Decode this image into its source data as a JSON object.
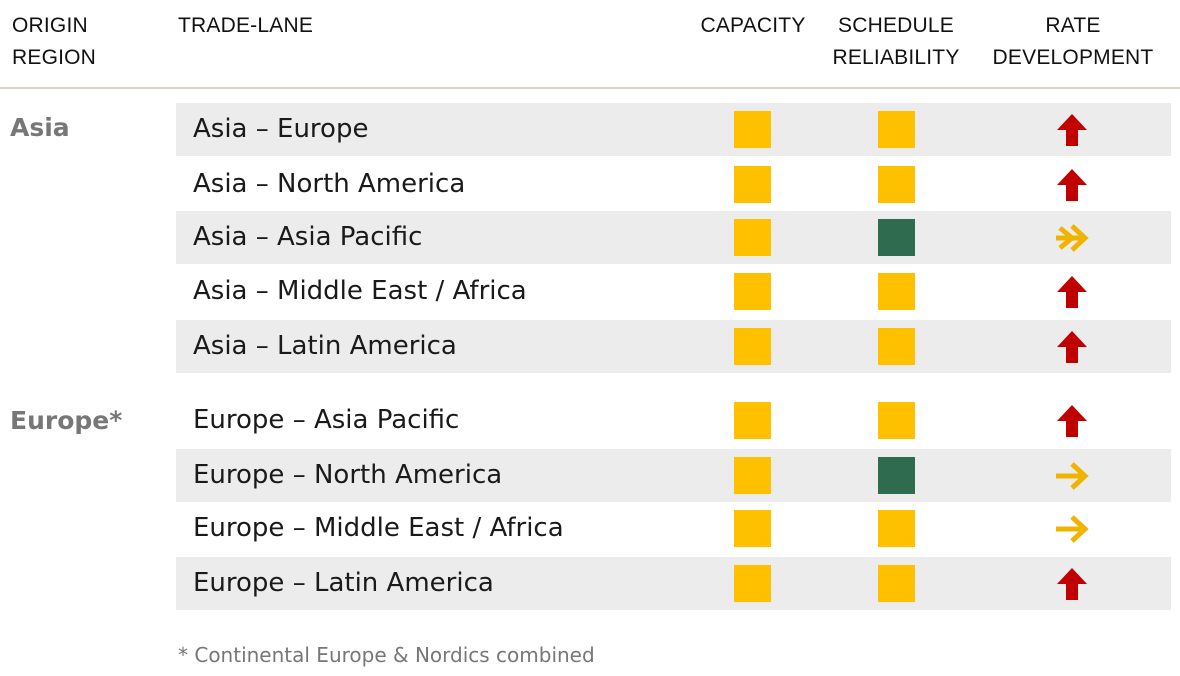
{
  "header": {
    "origin_region": [
      "ORIGIN",
      "REGION"
    ],
    "trade_lane": "TRADE-LANE",
    "capacity": "CAPACITY",
    "schedule_reliability": [
      "SCHEDULE",
      "RELIABILITY"
    ],
    "rate_development": [
      "RATE",
      "DEVELOPMENT"
    ]
  },
  "colors": {
    "status_yellow": "#ffc000",
    "status_green": "#2e6b4f",
    "arrow_up_red": "#c00000",
    "arrow_right_amber": "#f0b400"
  },
  "regions": [
    {
      "name": "Asia",
      "lanes": [
        {
          "lane": "Asia – Europe",
          "capacity": "yellow",
          "schedule_reliability": "yellow",
          "rate_development": "up-red-arrow-icon"
        },
        {
          "lane": "Asia – North America",
          "capacity": "yellow",
          "schedule_reliability": "yellow",
          "rate_development": "up-red-arrow-icon"
        },
        {
          "lane": "Asia – Asia Pacific",
          "capacity": "yellow",
          "schedule_reliability": "green",
          "rate_development": "right-amber-arrow-icon"
        },
        {
          "lane": "Asia – Middle East / Africa",
          "capacity": "yellow",
          "schedule_reliability": "yellow",
          "rate_development": "up-red-arrow-icon"
        },
        {
          "lane": "Asia – Latin America",
          "capacity": "yellow",
          "schedule_reliability": "yellow",
          "rate_development": "up-red-arrow-icon"
        }
      ]
    },
    {
      "name": "Europe*",
      "lanes": [
        {
          "lane": "Europe – Asia Pacific",
          "capacity": "yellow",
          "schedule_reliability": "yellow",
          "rate_development": "up-red-arrow-icon"
        },
        {
          "lane": "Europe – North America",
          "capacity": "yellow",
          "schedule_reliability": "green",
          "rate_development": "right-amber-arrow-icon"
        },
        {
          "lane": "Europe – Middle East / Africa",
          "capacity": "yellow",
          "schedule_reliability": "yellow",
          "rate_development": "right-amber-arrow-icon"
        },
        {
          "lane": "Europe – Latin America",
          "capacity": "yellow",
          "schedule_reliability": "yellow",
          "rate_development": "up-red-arrow-icon"
        }
      ]
    }
  ],
  "footnote": "* Continental Europe & Nordics combined"
}
